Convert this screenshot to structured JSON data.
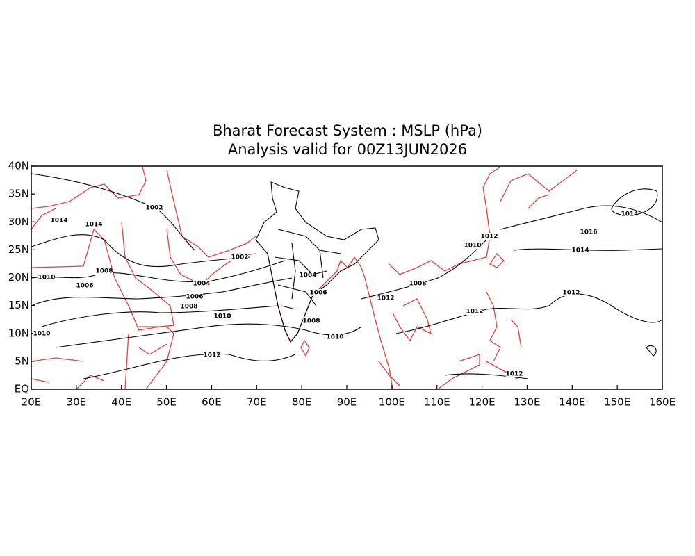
{
  "header": {
    "title": "Bharat Forecast System : MSLP (hPa)",
    "subtitle": "Analysis valid for 00Z13JUN2026"
  },
  "map": {
    "lon_ticks": [
      {
        "value": 20,
        "label": "20E"
      },
      {
        "value": 30,
        "label": "30E"
      },
      {
        "value": 40,
        "label": "40E"
      },
      {
        "value": 50,
        "label": "50E"
      },
      {
        "value": 60,
        "label": "60E"
      },
      {
        "value": 70,
        "label": "70E"
      },
      {
        "value": 80,
        "label": "80E"
      },
      {
        "value": 90,
        "label": "90E"
      },
      {
        "value": 100,
        "label": "100E"
      },
      {
        "value": 110,
        "label": "110E"
      },
      {
        "value": 120,
        "label": "120E"
      },
      {
        "value": 130,
        "label": "130E"
      },
      {
        "value": 140,
        "label": "140E"
      },
      {
        "value": 150,
        "label": "150E"
      },
      {
        "value": 160,
        "label": "160E"
      }
    ],
    "lat_ticks": [
      {
        "value": 0,
        "label": "EQ"
      },
      {
        "value": 5,
        "label": "5N"
      },
      {
        "value": 10,
        "label": "10N"
      },
      {
        "value": 15,
        "label": "15N"
      },
      {
        "value": 20,
        "label": "20N"
      },
      {
        "value": 25,
        "label": "25N"
      },
      {
        "value": 30,
        "label": "30N"
      },
      {
        "value": 35,
        "label": "35N"
      },
      {
        "value": 40,
        "label": "40N"
      }
    ],
    "contour_labels": [
      "1002",
      "1014",
      "1014",
      "1008",
      "1010",
      "1006",
      "1004",
      "1006",
      "1008",
      "1010",
      "1002",
      "1004",
      "1006",
      "1008",
      "1010",
      "1012",
      "1012",
      "1008",
      "1010",
      "1012",
      "1012",
      "1012",
      "1014",
      "1016",
      "1014",
      "1012",
      "1010"
    ]
  }
}
